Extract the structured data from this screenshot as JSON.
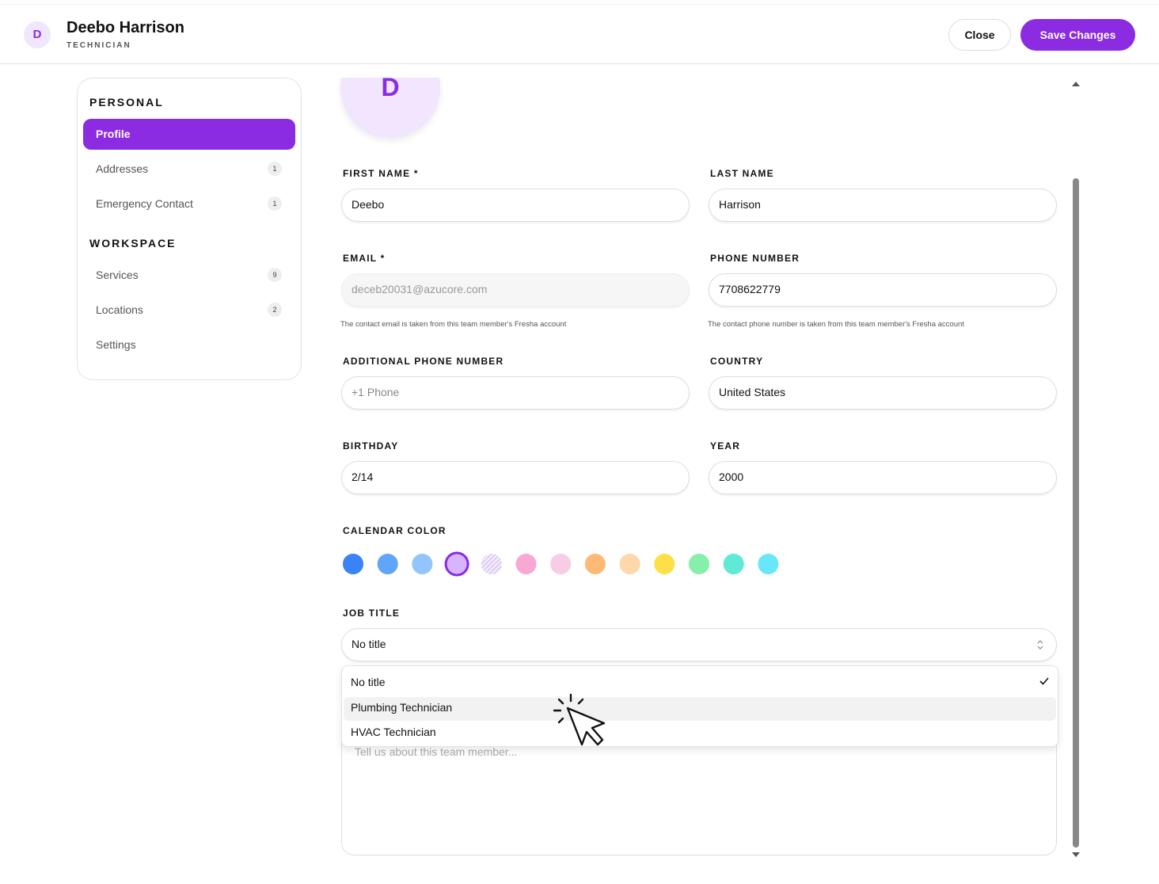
{
  "header": {
    "avatar": "D",
    "name": "Deebo Harrison",
    "role": "TECHNICIAN",
    "buttons": {
      "close": "Close",
      "save": "Save Changes"
    }
  },
  "sidebar": {
    "sections": [
      {
        "title": "PERSONAL",
        "items": [
          {
            "label": "Profile",
            "active": true
          },
          {
            "label": "Addresses",
            "count": 1
          },
          {
            "label": "Emergency Contact",
            "count": 1
          }
        ]
      },
      {
        "title": "WORKSPACE",
        "items": [
          {
            "label": "Services",
            "count": 9
          },
          {
            "label": "Locations",
            "count": 2
          },
          {
            "label": "Settings"
          }
        ]
      }
    ]
  },
  "form": {
    "avatar": "D",
    "fields": [
      {
        "label": "FIRST NAME *",
        "value": "Deebo"
      },
      {
        "label": "LAST NAME",
        "value": "Harrison"
      },
      {
        "label": "EMAIL *",
        "value": "deceb20031@azucore.com",
        "disabled": true,
        "help": "The contact email is taken from this team member's Fresha account"
      },
      {
        "label": "PHONE NUMBER",
        "value": "7708622779",
        "help": "The contact phone number is taken from this team member's Fresha account"
      },
      {
        "label": "ADDITIONAL PHONE NUMBER",
        "placeholder": "+1 Phone"
      },
      {
        "label": "COUNTRY",
        "value": "United States"
      },
      {
        "label": "BIRTHDAY",
        "value": "2/14"
      },
      {
        "label": "YEAR",
        "value": "2000"
      }
    ],
    "calendar_color": {
      "label": "CALENDAR COLOR",
      "colors": [
        "#3b82f6",
        "#60a5fa",
        "#93c5fd",
        "#d8b4fe",
        "#d8c8f5",
        "#f9a8d4",
        "#f7cde6",
        "#fdba74",
        "#fed7aa",
        "#fde047",
        "#86efac",
        "#5eead4",
        "#67e8f9"
      ],
      "selected": 3,
      "hatched": 4
    },
    "job_title": {
      "label": "JOB TITLE",
      "value": "No title",
      "options": [
        "No title",
        "Plumbing Technician",
        "HVAC Technician"
      ],
      "highlighted": 1
    },
    "notes": {
      "placeholder": "Tell us about this team member..."
    }
  }
}
